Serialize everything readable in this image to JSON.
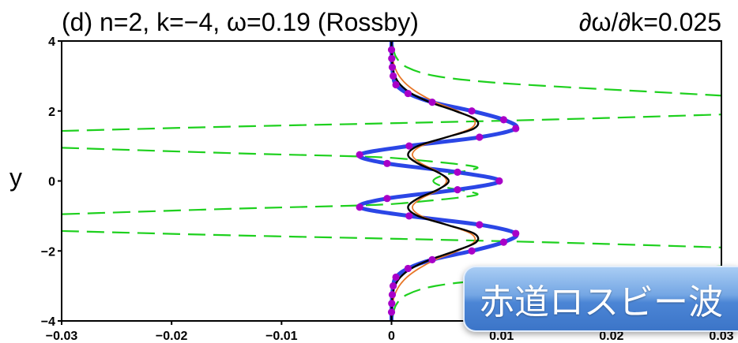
{
  "chart_data": {
    "type": "line",
    "title": "(d) n=2, k=−4, ω=0.19 (Rossby)",
    "title_right": "∂ω/∂k=0.025",
    "xlabel": "",
    "ylabel": "y",
    "xlim": [
      -0.03,
      0.03
    ],
    "ylim": [
      -4,
      4
    ],
    "xticks": {
      "values": [
        -0.03,
        -0.02,
        -0.01,
        0,
        0.01,
        0.02,
        0.03
      ],
      "labels": [
        "−0.03",
        "−0.02",
        "−0.01",
        "0",
        "0.01",
        "0.02",
        "0.03"
      ]
    },
    "yticks": {
      "values": [
        4,
        2,
        0,
        -2,
        -4
      ],
      "labels": [
        "4",
        "2",
        "0",
        "−2",
        "−4"
      ]
    },
    "grid": false,
    "legend": "none",
    "series": [
      {
        "style": "dashed",
        "color": "#1ed01e",
        "branches": [
          {
            "x": [
              0.0001,
              0.0004,
              0.0014,
              0.004,
              0.009,
              0.016,
              0.023,
              0.03
            ],
            "y": [
              3.9,
              3.55,
              3.25,
              3.0,
              2.82,
              2.68,
              2.56,
              2.44
            ]
          },
          {
            "x": [
              -0.03,
              -0.015,
              0,
              0.015,
              0.03
            ],
            "y": [
              1.43,
              1.55,
              1.65,
              1.76,
              1.9
            ]
          },
          {
            "x": [
              -0.03,
              -0.014,
              -0.004,
              0,
              0.0032,
              0.006,
              0.0078,
              0.007,
              0.0048,
              0.0038,
              0.0048,
              0.007,
              0.0078,
              0.006,
              0.0032,
              0,
              -0.004,
              -0.014,
              -0.03
            ],
            "y": [
              0.95,
              0.79,
              0.71,
              0.66,
              0.57,
              0.48,
              0.39,
              0.3,
              0.17,
              0,
              -0.17,
              -0.3,
              -0.39,
              -0.48,
              -0.57,
              -0.66,
              -0.71,
              -0.79,
              -0.95
            ]
          },
          {
            "x": [
              -0.03,
              -0.015,
              0,
              0.015,
              0.03
            ],
            "y": [
              -1.43,
              -1.55,
              -1.65,
              -1.76,
              -1.9
            ]
          },
          {
            "x": [
              0.0001,
              0.0004,
              0.0014,
              0.004,
              0.009,
              0.016,
              0.023,
              0.03
            ],
            "y": [
              -3.9,
              -3.55,
              -3.25,
              -3.0,
              -2.82,
              -2.68,
              -2.56,
              -2.44
            ]
          }
        ]
      },
      {
        "style": "solid",
        "color": "#2b46e6",
        "markers": true,
        "marker_color": "#a800c8",
        "y": [
          4,
          3.75,
          3.5,
          3.25,
          3,
          2.75,
          2.5,
          2.25,
          2,
          1.75,
          1.5,
          1.25,
          1,
          0.75,
          0.5,
          0.25,
          0,
          -0.25,
          -0.5,
          -0.75,
          -1,
          -1.25,
          -1.5,
          -1.75,
          -2,
          -2.25,
          -2.5,
          -2.75,
          -3,
          -3.25,
          -3.5,
          -3.75,
          -4
        ],
        "x": [
          0,
          0,
          2e-05,
          7e-05,
          0.00015,
          0.0004,
          0.0015,
          0.0037,
          0.0073,
          0.0102,
          0.0113,
          0.008,
          0.0016,
          -0.0029,
          -0.0004,
          0.006,
          0.0098,
          0.006,
          -0.0004,
          -0.0029,
          0.0016,
          0.008,
          0.0113,
          0.0102,
          0.0073,
          0.0037,
          0.0015,
          0.0004,
          0.00015,
          7e-05,
          2e-05,
          0,
          0
        ]
      },
      {
        "style": "solid",
        "color": "#e8782a",
        "y": [
          4,
          3.75,
          3.5,
          3.25,
          3,
          2.75,
          2.5,
          2.25,
          2,
          1.75,
          1.5,
          1.25,
          1,
          0.75,
          0.5,
          0.25,
          0,
          -0.25,
          -0.5,
          -0.75,
          -1,
          -1.25,
          -1.5,
          -1.75,
          -2,
          -2.25,
          -2.5,
          -2.75,
          -3,
          -3.25,
          -3.5,
          -3.75,
          -4
        ],
        "x": [
          0,
          3e-05,
          0.0001,
          0.0003,
          0.0007,
          0.0014,
          0.0025,
          0.004,
          0.006,
          0.0075,
          0.0072,
          0.005,
          0.0027,
          0.0019,
          0.0027,
          0.0043,
          0.005,
          0.0043,
          0.0027,
          0.0019,
          0.0027,
          0.005,
          0.0072,
          0.0075,
          0.006,
          0.004,
          0.0025,
          0.0014,
          0.0007,
          0.0003,
          0.0001,
          3e-05,
          0
        ]
      },
      {
        "style": "solid",
        "color": "#000000",
        "y": [
          4,
          3.75,
          3.5,
          3.25,
          3,
          2.75,
          2.5,
          2.25,
          2,
          1.75,
          1.5,
          1.25,
          1,
          0.75,
          0.5,
          0.25,
          0,
          -0.25,
          -0.5,
          -0.75,
          -1,
          -1.25,
          -1.5,
          -1.75,
          -2,
          -2.25,
          -2.5,
          -2.75,
          -3,
          -3.25,
          -3.5,
          -3.75,
          -4
        ],
        "x": [
          0,
          0,
          5e-05,
          0.0001,
          0.0003,
          0.0008,
          0.0018,
          0.0035,
          0.0058,
          0.0077,
          0.0075,
          0.005,
          0.0024,
          0.0015,
          0.0024,
          0.0042,
          0.0052,
          0.0042,
          0.0024,
          0.0015,
          0.0024,
          0.005,
          0.0075,
          0.0077,
          0.0058,
          0.0035,
          0.0018,
          0.0008,
          0.0003,
          0.0001,
          5e-05,
          0,
          0
        ]
      }
    ]
  },
  "overlay_button": {
    "label": "赤道ロスビー波"
  }
}
